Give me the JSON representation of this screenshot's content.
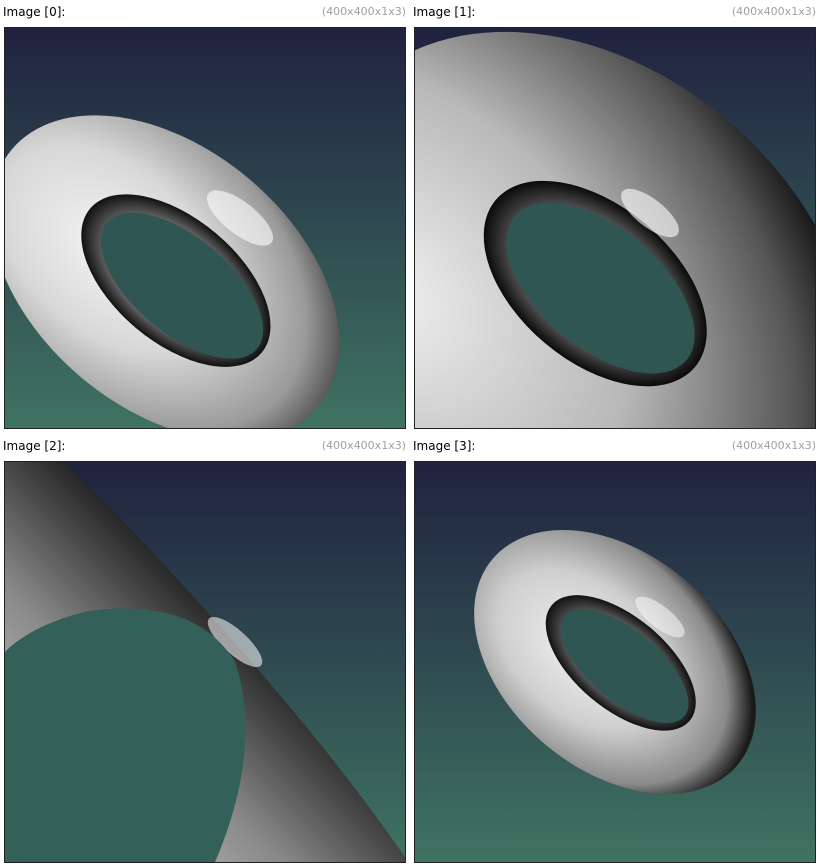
{
  "images": [
    {
      "title": "Image [0]:",
      "dims": "(400x400x1x3)"
    },
    {
      "title": "Image [1]:",
      "dims": "(400x400x1x3)"
    },
    {
      "title": "Image [2]:",
      "dims": "(400x400x1x3)"
    },
    {
      "title": "Image [3]:",
      "dims": "(400x400x1x3)"
    }
  ],
  "colors": {
    "background_top": "#20223f",
    "background_bottom": "#3f7362",
    "torus_light": "#f2f2f2",
    "torus_mid": "#a8a8a8",
    "torus_dark": "#151515"
  }
}
